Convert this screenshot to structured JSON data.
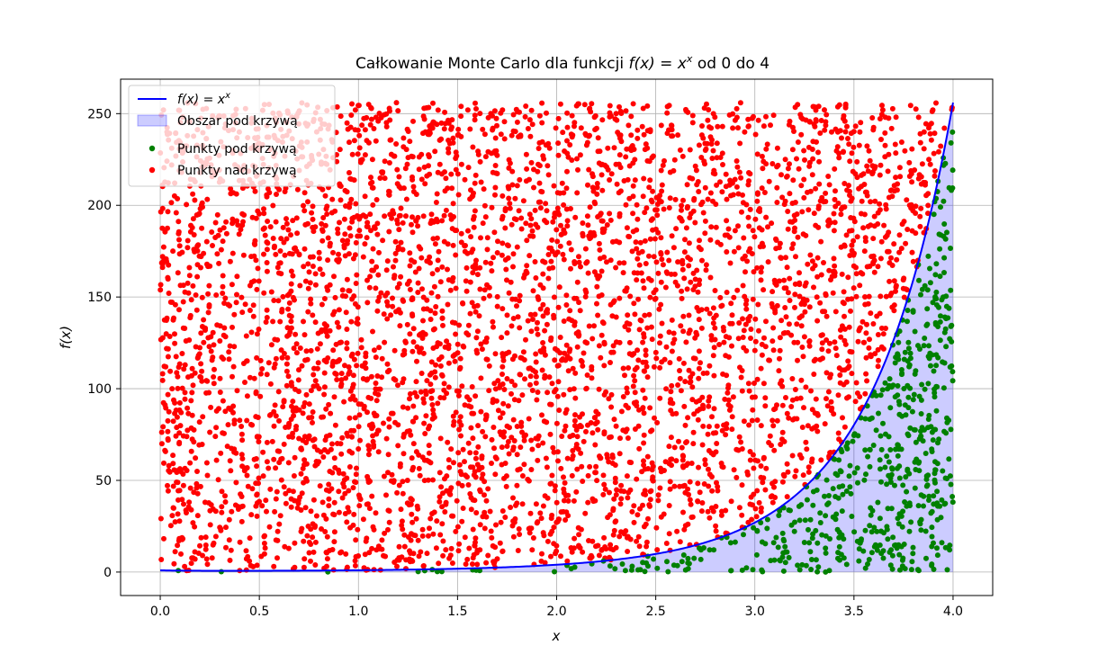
{
  "chart_data": {
    "type": "scatter",
    "title_text": "Całkowanie Monte Carlo dla funkcji ",
    "title_math_base": "f(x) = x",
    "title_math_sup": "x",
    "title_tail": " od 0 do 4",
    "xlabel": "x",
    "ylabel": "f(x)",
    "xlim": [
      -0.2,
      4.2
    ],
    "ylim": [
      -12.8,
      268.8
    ],
    "xticks": [
      0.0,
      0.5,
      1.0,
      1.5,
      2.0,
      2.5,
      3.0,
      3.5,
      4.0
    ],
    "xtick_labels": [
      "0.0",
      "0.5",
      "1.0",
      "1.5",
      "2.0",
      "2.5",
      "3.0",
      "3.5",
      "4.0"
    ],
    "yticks": [
      0,
      50,
      100,
      150,
      200,
      250
    ],
    "ytick_labels": [
      "0",
      "50",
      "100",
      "150",
      "200",
      "250"
    ],
    "grid": true,
    "legend_position": "top-left",
    "sampling_region": {
      "x": [
        0,
        4
      ],
      "y": [
        0,
        256
      ]
    },
    "approx_point_count": 5000,
    "series": [
      {
        "name_base": "f(x) = x",
        "name_sup": "x",
        "kind": "line",
        "function": "x^x",
        "x_range": [
          0,
          4
        ],
        "color": "#0000ff"
      },
      {
        "name": "Obszar pod krzywą",
        "kind": "area",
        "function": "x^x",
        "x_range": [
          0,
          4
        ],
        "color": "#0000ff",
        "alpha": 0.2
      },
      {
        "name": "Punkty pod krzywą",
        "kind": "scatter",
        "condition": "y <= x^x",
        "color": "#008000"
      },
      {
        "name": "Punkty nad krzywą",
        "kind": "scatter",
        "condition": "y > x^x",
        "color": "#ff0000"
      }
    ]
  }
}
